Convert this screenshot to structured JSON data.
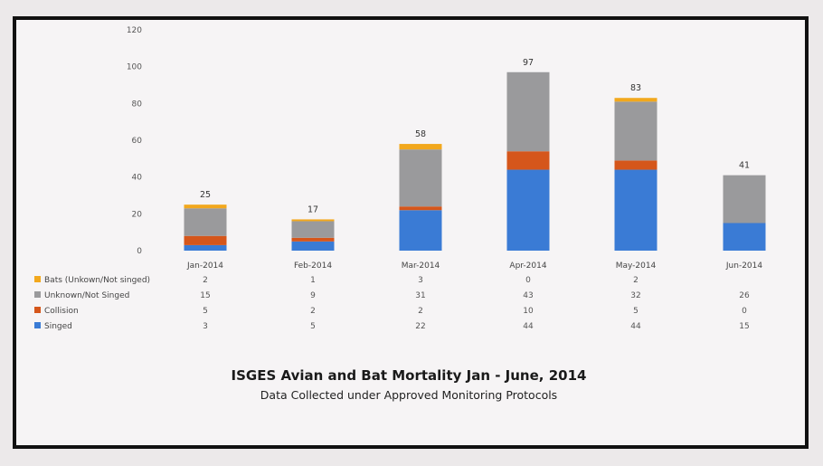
{
  "chart_data": {
    "type": "bar",
    "stacked": true,
    "title": "ISGES Avian and Bat Mortality  Jan - June, 2014",
    "subtitle": "Data Collected under Approved Monitoring Protocols",
    "categories": [
      "Jan-2014",
      "Feb-2014",
      "Mar-2014",
      "Apr-2014",
      "May-2014",
      "Jun-2014"
    ],
    "series": [
      {
        "name": "Singed",
        "color": "#3a7bd5",
        "values": [
          "3",
          "5",
          "22",
          "44",
          "44",
          "15"
        ]
      },
      {
        "name": "Collision",
        "color": "#d5561b",
        "values": [
          "5",
          "2",
          "2",
          "10",
          "5",
          "0"
        ]
      },
      {
        "name": "Unknown/Not Singed",
        "color": "#9a9a9c",
        "values": [
          "15",
          "9",
          "31",
          "43",
          "32",
          "26"
        ]
      },
      {
        "name": "Bats (Unkown/Not singed)",
        "color": "#f2a81d",
        "values": [
          "2",
          "1",
          "3",
          "0",
          "2",
          ""
        ]
      }
    ],
    "totals": [
      "25",
      "17",
      "58",
      "97",
      "83",
      "41"
    ],
    "yticks": [
      "0",
      "20",
      "40",
      "60",
      "80",
      "100",
      "120"
    ],
    "ylim": [
      0,
      120
    ],
    "legend_position": "bottom-left data table",
    "grid": false
  }
}
